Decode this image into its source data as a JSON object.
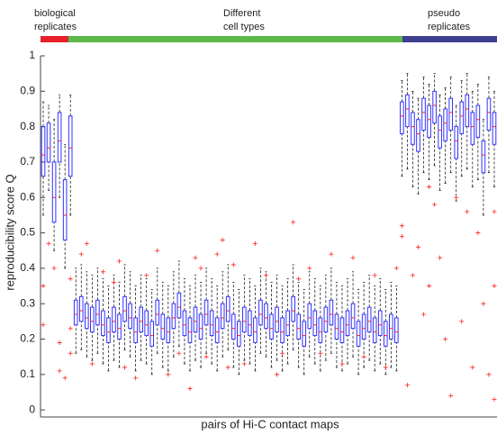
{
  "chart_data": {
    "type": "boxplot",
    "ylabel": "reproducibility score Q",
    "xlabel": "pairs of Hi-C contact maps",
    "groups": [
      {
        "label": [
          "biological",
          "replicates"
        ],
        "color": "#e8202a"
      },
      {
        "label": [
          "Different",
          "cell types"
        ],
        "color": "#5cb848"
      },
      {
        "label": [
          "pseudo",
          "replicates"
        ],
        "color": "#3f3f8f"
      }
    ],
    "ylim": [
      -0.02,
      1
    ],
    "yticks": [
      0,
      0.1,
      0.2,
      0.3,
      0.4,
      0.5,
      0.6,
      0.7,
      0.8,
      0.9,
      1
    ],
    "box_color": "#3333ff",
    "median_color": "#ff2020",
    "whisker_color": "#000000",
    "flier_color": "#ff2020",
    "boxes": [
      [
        0.55,
        0.66,
        0.72,
        0.8,
        0.87
      ],
      [
        0.62,
        0.7,
        0.74,
        0.81,
        0.86
      ],
      [
        0.45,
        0.53,
        0.6,
        0.7,
        0.82
      ],
      [
        0.6,
        0.7,
        0.76,
        0.84,
        0.89
      ],
      [
        0.4,
        0.48,
        0.55,
        0.65,
        0.75
      ],
      [
        0.55,
        0.66,
        0.74,
        0.83,
        0.89
      ],
      [
        0.16,
        0.24,
        0.27,
        0.31,
        0.4
      ],
      [
        0.17,
        0.25,
        0.28,
        0.32,
        0.41
      ],
      [
        0.15,
        0.23,
        0.26,
        0.3,
        0.39
      ],
      [
        0.14,
        0.22,
        0.25,
        0.29,
        0.38
      ],
      [
        0.16,
        0.24,
        0.27,
        0.31,
        0.4
      ],
      [
        0.13,
        0.21,
        0.24,
        0.28,
        0.37
      ],
      [
        0.11,
        0.19,
        0.22,
        0.26,
        0.35
      ],
      [
        0.14,
        0.22,
        0.25,
        0.29,
        0.38
      ],
      [
        0.12,
        0.2,
        0.23,
        0.27,
        0.36
      ],
      [
        0.17,
        0.25,
        0.28,
        0.32,
        0.41
      ],
      [
        0.15,
        0.23,
        0.26,
        0.3,
        0.39
      ],
      [
        0.11,
        0.19,
        0.22,
        0.26,
        0.35
      ],
      [
        0.14,
        0.22,
        0.25,
        0.29,
        0.38
      ],
      [
        0.13,
        0.21,
        0.24,
        0.28,
        0.37
      ],
      [
        0.1,
        0.18,
        0.21,
        0.25,
        0.34
      ],
      [
        0.16,
        0.24,
        0.27,
        0.31,
        0.4
      ],
      [
        0.12,
        0.2,
        0.23,
        0.27,
        0.36
      ],
      [
        0.11,
        0.19,
        0.22,
        0.26,
        0.35
      ],
      [
        0.15,
        0.23,
        0.26,
        0.3,
        0.39
      ],
      [
        0.18,
        0.26,
        0.29,
        0.33,
        0.42
      ],
      [
        0.13,
        0.21,
        0.24,
        0.28,
        0.37
      ],
      [
        0.11,
        0.19,
        0.22,
        0.26,
        0.35
      ],
      [
        0.14,
        0.22,
        0.25,
        0.29,
        0.38
      ],
      [
        0.12,
        0.2,
        0.23,
        0.27,
        0.36
      ],
      [
        0.16,
        0.24,
        0.27,
        0.31,
        0.4
      ],
      [
        0.13,
        0.21,
        0.24,
        0.28,
        0.37
      ],
      [
        0.11,
        0.19,
        0.22,
        0.26,
        0.35
      ],
      [
        0.15,
        0.23,
        0.26,
        0.3,
        0.39
      ],
      [
        0.17,
        0.25,
        0.28,
        0.32,
        0.41
      ],
      [
        0.12,
        0.2,
        0.23,
        0.27,
        0.36
      ],
      [
        0.1,
        0.18,
        0.21,
        0.25,
        0.34
      ],
      [
        0.14,
        0.22,
        0.25,
        0.29,
        0.38
      ],
      [
        0.13,
        0.21,
        0.24,
        0.28,
        0.37
      ],
      [
        0.11,
        0.19,
        0.22,
        0.26,
        0.35
      ],
      [
        0.16,
        0.24,
        0.27,
        0.31,
        0.4
      ],
      [
        0.15,
        0.23,
        0.26,
        0.3,
        0.39
      ],
      [
        0.12,
        0.2,
        0.23,
        0.27,
        0.36
      ],
      [
        0.14,
        0.22,
        0.25,
        0.29,
        0.38
      ],
      [
        0.11,
        0.19,
        0.22,
        0.26,
        0.35
      ],
      [
        0.13,
        0.21,
        0.24,
        0.28,
        0.37
      ],
      [
        0.17,
        0.25,
        0.28,
        0.32,
        0.41
      ],
      [
        0.12,
        0.2,
        0.23,
        0.27,
        0.36
      ],
      [
        0.1,
        0.18,
        0.21,
        0.25,
        0.34
      ],
      [
        0.15,
        0.23,
        0.26,
        0.3,
        0.39
      ],
      [
        0.13,
        0.21,
        0.24,
        0.28,
        0.37
      ],
      [
        0.11,
        0.19,
        0.22,
        0.26,
        0.35
      ],
      [
        0.14,
        0.22,
        0.25,
        0.29,
        0.38
      ],
      [
        0.16,
        0.24,
        0.27,
        0.31,
        0.4
      ],
      [
        0.12,
        0.2,
        0.23,
        0.27,
        0.36
      ],
      [
        0.11,
        0.19,
        0.22,
        0.26,
        0.35
      ],
      [
        0.13,
        0.21,
        0.24,
        0.28,
        0.37
      ],
      [
        0.15,
        0.23,
        0.26,
        0.3,
        0.39
      ],
      [
        0.1,
        0.18,
        0.21,
        0.25,
        0.34
      ],
      [
        0.12,
        0.2,
        0.23,
        0.27,
        0.36
      ],
      [
        0.14,
        0.22,
        0.25,
        0.29,
        0.38
      ],
      [
        0.11,
        0.19,
        0.22,
        0.26,
        0.35
      ],
      [
        0.13,
        0.21,
        0.24,
        0.28,
        0.37
      ],
      [
        0.1,
        0.18,
        0.21,
        0.25,
        0.34
      ],
      [
        0.12,
        0.2,
        0.23,
        0.27,
        0.36
      ],
      [
        0.11,
        0.19,
        0.22,
        0.26,
        0.35
      ],
      [
        0.66,
        0.78,
        0.83,
        0.87,
        0.93
      ],
      [
        0.68,
        0.8,
        0.85,
        0.89,
        0.95
      ],
      [
        0.63,
        0.75,
        0.8,
        0.84,
        0.9
      ],
      [
        0.61,
        0.73,
        0.78,
        0.82,
        0.88
      ],
      [
        0.67,
        0.79,
        0.84,
        0.88,
        0.94
      ],
      [
        0.65,
        0.77,
        0.82,
        0.86,
        0.92
      ],
      [
        0.69,
        0.81,
        0.86,
        0.9,
        0.95
      ],
      [
        0.62,
        0.74,
        0.79,
        0.83,
        0.89
      ],
      [
        0.64,
        0.76,
        0.81,
        0.85,
        0.91
      ],
      [
        0.67,
        0.79,
        0.84,
        0.88,
        0.94
      ],
      [
        0.59,
        0.71,
        0.76,
        0.8,
        0.86
      ],
      [
        0.66,
        0.78,
        0.83,
        0.87,
        0.93
      ],
      [
        0.68,
        0.8,
        0.85,
        0.89,
        0.95
      ],
      [
        0.63,
        0.75,
        0.8,
        0.84,
        0.9
      ],
      [
        0.65,
        0.77,
        0.82,
        0.86,
        0.92
      ],
      [
        0.55,
        0.67,
        0.72,
        0.76,
        0.82
      ],
      [
        0.67,
        0.79,
        0.84,
        0.88,
        0.94
      ],
      [
        0.63,
        0.75,
        0.8,
        0.84,
        0.9
      ]
    ],
    "fliers": {
      "x": [
        1,
        1,
        2,
        3,
        4,
        4,
        5,
        6,
        6,
        6,
        8,
        9,
        10,
        12,
        14,
        15,
        16,
        18,
        20,
        22,
        24,
        26,
        28,
        29,
        30,
        31,
        33,
        34,
        35,
        36,
        38,
        40,
        42,
        44,
        45,
        47,
        48,
        50,
        52,
        54,
        56,
        58,
        60,
        62,
        64,
        66,
        67,
        67,
        68,
        69,
        70,
        71,
        72,
        72,
        73,
        74,
        75,
        76,
        77,
        78,
        79,
        80,
        81,
        82,
        83,
        84,
        84,
        84
      ],
      "y": [
        0.35,
        0.24,
        0.47,
        0.4,
        0.19,
        0.11,
        0.09,
        0.16,
        0.23,
        0.37,
        0.44,
        0.47,
        0.13,
        0.39,
        0.36,
        0.42,
        0.12,
        0.09,
        0.38,
        0.45,
        0.1,
        0.16,
        0.06,
        0.43,
        0.4,
        0.15,
        0.44,
        0.48,
        0.12,
        0.41,
        0.13,
        0.47,
        0.38,
        0.1,
        0.16,
        0.53,
        0.37,
        0.4,
        0.16,
        0.44,
        0.13,
        0.43,
        0.15,
        0.38,
        0.12,
        0.4,
        0.52,
        0.49,
        0.07,
        0.38,
        0.46,
        0.27,
        0.63,
        0.35,
        0.58,
        0.43,
        0.2,
        0.04,
        0.6,
        0.25,
        0.56,
        0.12,
        0.5,
        0.3,
        0.1,
        0.56,
        0.03,
        0.35
      ]
    }
  }
}
